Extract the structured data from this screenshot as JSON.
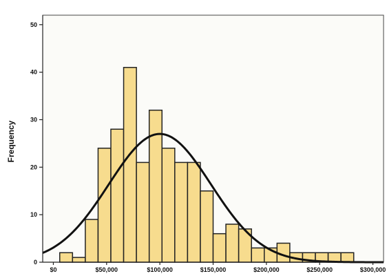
{
  "chart_data": {
    "type": "bar",
    "subtype": "histogram",
    "ylabel": "Frequency",
    "xlabel": "",
    "xlim": [
      -10000,
      310000
    ],
    "ylim": [
      0,
      52
    ],
    "x_tick_values": [
      0,
      50000,
      100000,
      150000,
      200000,
      250000,
      300000
    ],
    "x_tick_labels": [
      "$0",
      "$50,000",
      "$100,000",
      "$150,000",
      "$200,000",
      "$250,000",
      "$300,000"
    ],
    "y_tick_values": [
      0,
      10,
      20,
      30,
      40,
      50
    ],
    "y_tick_labels": [
      "0",
      "10",
      "20",
      "30",
      "40",
      "50"
    ],
    "bin_width": 12000,
    "bin_starts": [
      6000,
      18000,
      30000,
      42000,
      54000,
      66000,
      78000,
      90000,
      102000,
      114000,
      126000,
      138000,
      150000,
      162000,
      174000,
      186000,
      198000,
      210000,
      222000,
      234000,
      246000,
      258000,
      270000,
      282000,
      294000
    ],
    "values": [
      2,
      1,
      9,
      24,
      28,
      41,
      21,
      32,
      24,
      21,
      21,
      15,
      6,
      8,
      7,
      3,
      3,
      4,
      2,
      2,
      2,
      2,
      2,
      0,
      0
    ],
    "normal_curve": {
      "mean": 100000,
      "sd": 48000,
      "peak": 27
    },
    "grid": false,
    "bar_color": "#f7dc8e",
    "bar_edge_color": "#222222",
    "curve_color": "#111111"
  }
}
